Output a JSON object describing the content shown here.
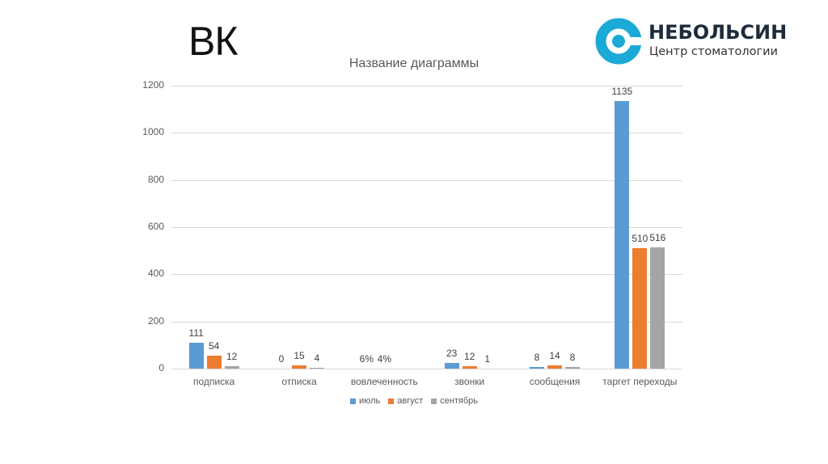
{
  "slide": {
    "title": "ВК"
  },
  "logo": {
    "name": "НЕБОЛЬСИН",
    "subtitle": "Центр стоматологии",
    "color": "#1ba9d8"
  },
  "chart_data": {
    "type": "bar",
    "title": "Название диаграммы",
    "xlabel": "",
    "ylabel": "",
    "ylim": [
      0,
      1200
    ],
    "yticks": [
      0,
      200,
      400,
      600,
      800,
      1000,
      1200
    ],
    "grid": true,
    "legend_position": "bottom",
    "categories": [
      "подписка",
      "отписка",
      "вовлеченность",
      "звонки",
      "сообщения",
      "таргет переходы"
    ],
    "series": [
      {
        "name": "июль",
        "color": "#5b9bd5",
        "values": [
          111,
          0,
          0.06,
          23,
          8,
          1135
        ],
        "labels": [
          "111",
          "0",
          "6%",
          "23",
          "8",
          "1135"
        ]
      },
      {
        "name": "август",
        "color": "#ed7d31",
        "values": [
          54,
          15,
          0.04,
          12,
          14,
          510
        ],
        "labels": [
          "54",
          "15",
          "4%",
          "12",
          "14",
          "510"
        ]
      },
      {
        "name": "сентябрь",
        "color": "#a5a5a5",
        "values": [
          12,
          4,
          null,
          1,
          8,
          516
        ],
        "labels": [
          "12",
          "4",
          "",
          "1",
          "8",
          "516"
        ]
      }
    ]
  }
}
